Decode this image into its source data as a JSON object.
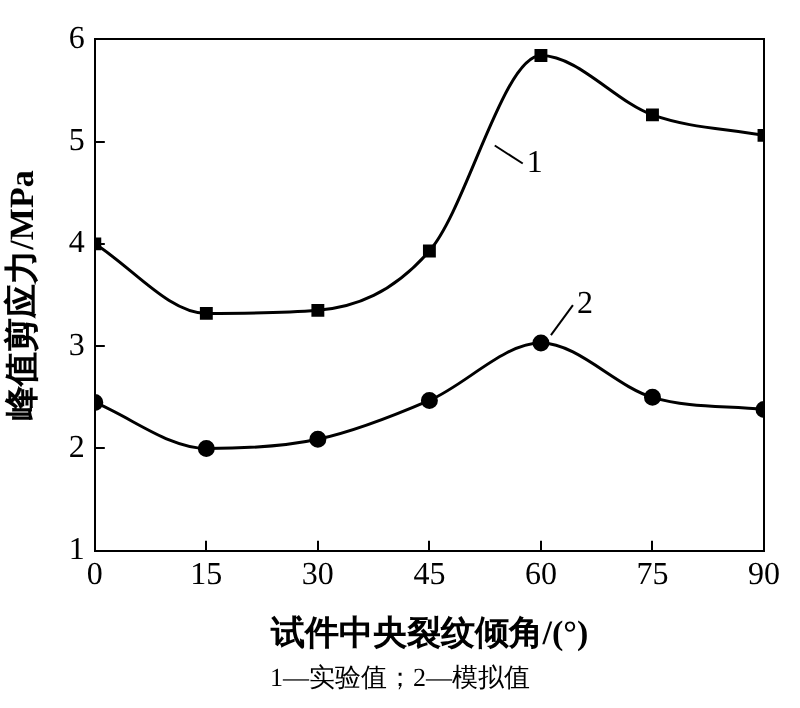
{
  "chart_data": {
    "type": "line",
    "xlabel": "试件中央裂纹倾角/(°)",
    "ylabel": "峰值剪应力/MPa",
    "x": [
      0,
      15,
      30,
      45,
      60,
      75,
      90
    ],
    "series": [
      {
        "name": "1",
        "color": "#000000",
        "marker": "square",
        "values": [
          4.0,
          3.32,
          3.35,
          3.93,
          5.84,
          5.26,
          5.06
        ]
      },
      {
        "name": "2",
        "color": "#000000",
        "marker": "circle",
        "values": [
          2.45,
          2.0,
          2.09,
          2.47,
          3.03,
          2.5,
          2.38
        ]
      }
    ],
    "xlim": [
      0,
      90
    ],
    "xticks": [
      0,
      15,
      30,
      45,
      60,
      75,
      90
    ],
    "ylim": [
      1,
      6
    ],
    "yticks": [
      1,
      2,
      3,
      4,
      5,
      6
    ],
    "grid": false,
    "legend": "center",
    "line_style": "solid",
    "annotations": [
      "1—实验值；2—模拟值"
    ]
  }
}
